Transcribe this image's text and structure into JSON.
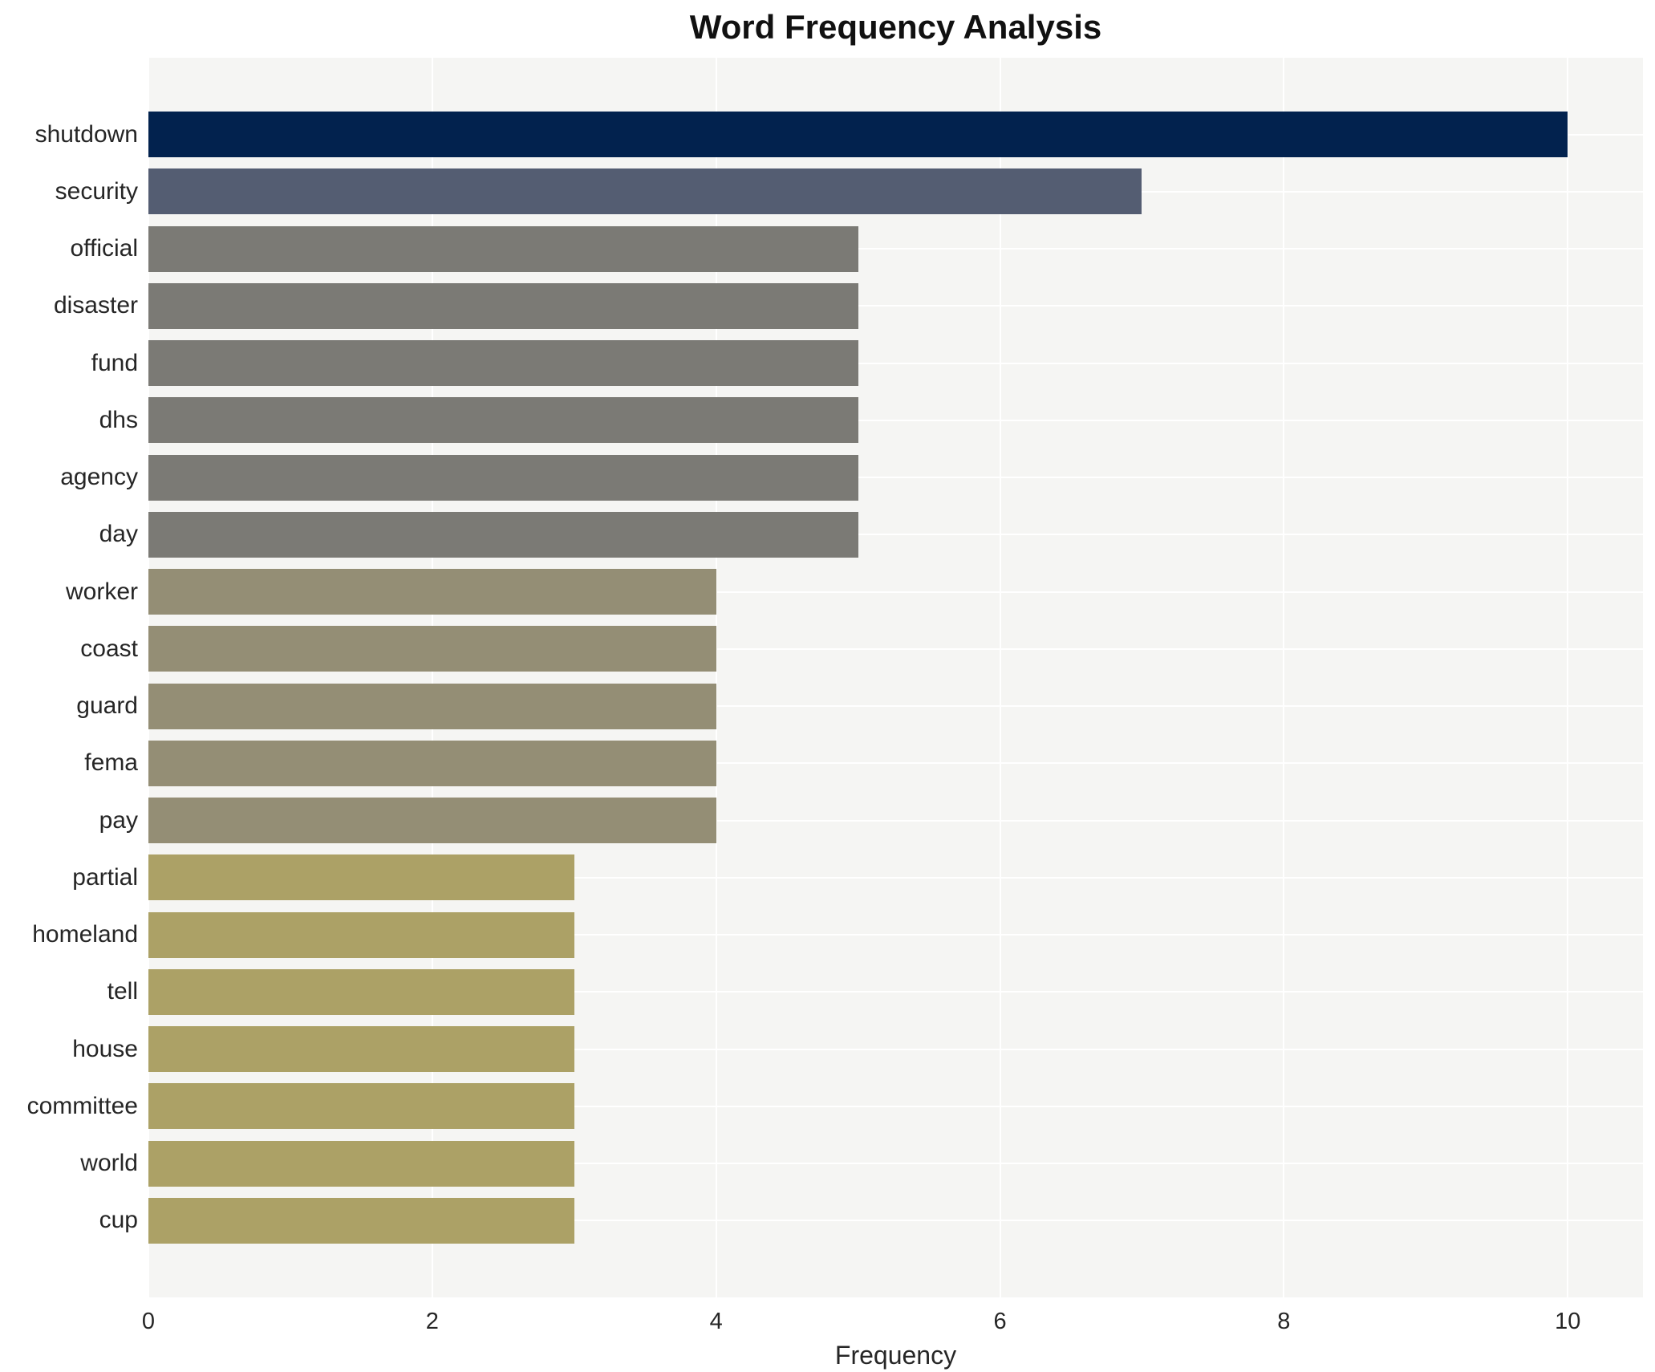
{
  "title": "Word Frequency Analysis",
  "xlabel": "Frequency",
  "chart_data": {
    "type": "bar",
    "orientation": "horizontal",
    "title": "Word Frequency Analysis",
    "xlabel": "Frequency",
    "ylabel": "",
    "categories": [
      "shutdown",
      "security",
      "official",
      "disaster",
      "fund",
      "dhs",
      "agency",
      "day",
      "worker",
      "coast",
      "guard",
      "fema",
      "pay",
      "partial",
      "homeland",
      "tell",
      "house",
      "committee",
      "world",
      "cup"
    ],
    "values": [
      10,
      7,
      5,
      5,
      5,
      5,
      5,
      5,
      4,
      4,
      4,
      4,
      4,
      3,
      3,
      3,
      3,
      3,
      3,
      3
    ],
    "bar_colors": [
      "#02224e",
      "#545d72",
      "#7b7a75",
      "#7b7a75",
      "#7b7a75",
      "#7b7a75",
      "#7b7a75",
      "#7b7a75",
      "#948e75",
      "#948e75",
      "#948e75",
      "#948e75",
      "#948e75",
      "#aca166",
      "#aca166",
      "#aca166",
      "#aca166",
      "#aca166",
      "#aca166",
      "#aca166"
    ],
    "xticks": [
      0,
      2,
      4,
      6,
      8,
      10
    ],
    "xlim": [
      0,
      10.53
    ],
    "grid": true,
    "legend": "none",
    "plot_background": "#f5f5f3",
    "grid_color": "#ffffff"
  }
}
